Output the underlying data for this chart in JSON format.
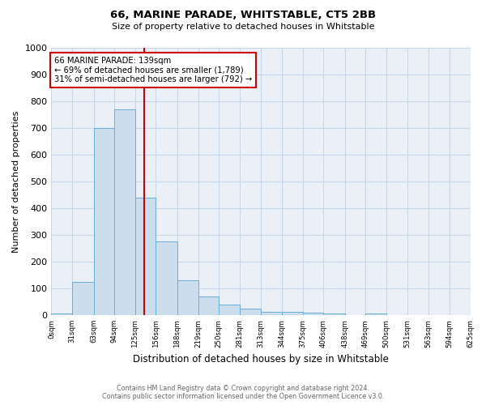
{
  "title": "66, MARINE PARADE, WHITSTABLE, CT5 2BB",
  "subtitle": "Size of property relative to detached houses in Whitstable",
  "xlabel": "Distribution of detached houses by size in Whitstable",
  "ylabel": "Number of detached properties",
  "footer_line1": "Contains HM Land Registry data © Crown copyright and database right 2024.",
  "footer_line2": "Contains public sector information licensed under the Open Government Licence v3.0.",
  "bin_edges": [
    0,
    31,
    63,
    94,
    125,
    156,
    188,
    219,
    250,
    281,
    313,
    344,
    375,
    406,
    438,
    469,
    500,
    531,
    563,
    594,
    625
  ],
  "bar_heights": [
    5,
    125,
    700,
    770,
    440,
    275,
    130,
    70,
    40,
    25,
    12,
    12,
    10,
    5,
    0,
    5,
    0,
    0,
    0,
    0
  ],
  "bar_color": "#ccdded",
  "bar_edge_color": "#6aaed6",
  "red_line_x": 139,
  "ylim": [
    0,
    1000
  ],
  "annotation_text": "66 MARINE PARADE: 139sqm\n← 69% of detached houses are smaller (1,789)\n31% of semi-detached houses are larger (792) →",
  "annotation_box_color": "#ffffff",
  "annotation_box_edge": "#cc0000",
  "red_line_color": "#cc0000",
  "grid_color": "#c8d8e8",
  "background_color": "#eaf0f6"
}
